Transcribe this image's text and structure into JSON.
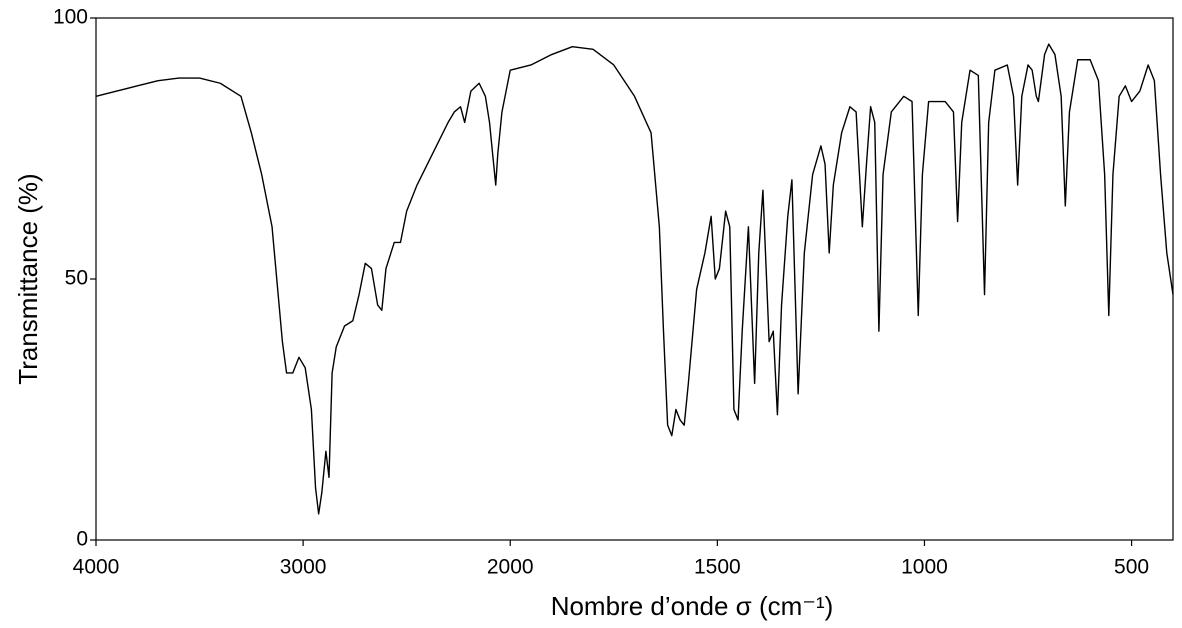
{
  "chart_data": {
    "type": "line",
    "x_label": "Nombre d’onde σ (cm⁻¹)",
    "y_label": "Transmittance (%)",
    "xlim": [
      4000,
      400
    ],
    "x_scale_change": {
      "at": 2000,
      "factor": 2
    },
    "ylim": [
      0,
      100
    ],
    "xticks": [
      4000,
      3000,
      2000,
      1500,
      1000,
      500
    ],
    "yticks": [
      0,
      50,
      100
    ],
    "color": "#000000",
    "x": [
      4000,
      3900,
      3800,
      3700,
      3600,
      3500,
      3400,
      3300,
      3250,
      3200,
      3150,
      3100,
      3080,
      3050,
      3020,
      2990,
      2960,
      2940,
      2925,
      2910,
      2890,
      2875,
      2860,
      2840,
      2800,
      2760,
      2730,
      2700,
      2670,
      2640,
      2620,
      2600,
      2560,
      2530,
      2500,
      2450,
      2400,
      2350,
      2300,
      2270,
      2240,
      2220,
      2190,
      2150,
      2120,
      2100,
      2080,
      2070,
      2060,
      2040,
      2020,
      2000,
      1950,
      1900,
      1850,
      1800,
      1750,
      1700,
      1660,
      1640,
      1630,
      1620,
      1610,
      1600,
      1590,
      1580,
      1570,
      1550,
      1530,
      1515,
      1505,
      1495,
      1480,
      1470,
      1460,
      1450,
      1440,
      1425,
      1410,
      1400,
      1390,
      1375,
      1365,
      1355,
      1345,
      1330,
      1320,
      1305,
      1290,
      1270,
      1250,
      1240,
      1230,
      1220,
      1200,
      1180,
      1165,
      1150,
      1140,
      1130,
      1120,
      1110,
      1100,
      1080,
      1050,
      1030,
      1015,
      1005,
      990,
      950,
      930,
      920,
      910,
      890,
      870,
      855,
      845,
      830,
      800,
      785,
      775,
      765,
      750,
      740,
      730,
      725,
      710,
      700,
      685,
      670,
      660,
      650,
      630,
      600,
      580,
      565,
      555,
      545,
      530,
      515,
      500,
      480,
      460,
      445,
      430,
      415,
      400
    ],
    "values": [
      85,
      86,
      87,
      88,
      88.5,
      88.5,
      87.5,
      85,
      78,
      70,
      60,
      38,
      32,
      32,
      35,
      33,
      25,
      10,
      5,
      9,
      17,
      12,
      32,
      37,
      41,
      42,
      47,
      53,
      52,
      45,
      44,
      52,
      57,
      57,
      63,
      68,
      72,
      76,
      80,
      82,
      83,
      80,
      86,
      87.5,
      85,
      80,
      72,
      68,
      74,
      82,
      86,
      90,
      91,
      93,
      94.5,
      94,
      91,
      85,
      78,
      60,
      40,
      22,
      20,
      25,
      23,
      22,
      30,
      48,
      55,
      62,
      50,
      52,
      63,
      60,
      25,
      23,
      40,
      60,
      30,
      55,
      67,
      38,
      40,
      24,
      45,
      62,
      69,
      28,
      55,
      70,
      75.5,
      72,
      55,
      68,
      78,
      83,
      82,
      60,
      72,
      83,
      80,
      40,
      70,
      82,
      85,
      84,
      43,
      70,
      84,
      84,
      82,
      61,
      80,
      90,
      89,
      47,
      80,
      90,
      91,
      85,
      68,
      85,
      91,
      90,
      85,
      84,
      93,
      95,
      93,
      85,
      64,
      82,
      92,
      92,
      88,
      70,
      43,
      70,
      85,
      87,
      84,
      86,
      91,
      88,
      70,
      55,
      47
    ]
  }
}
